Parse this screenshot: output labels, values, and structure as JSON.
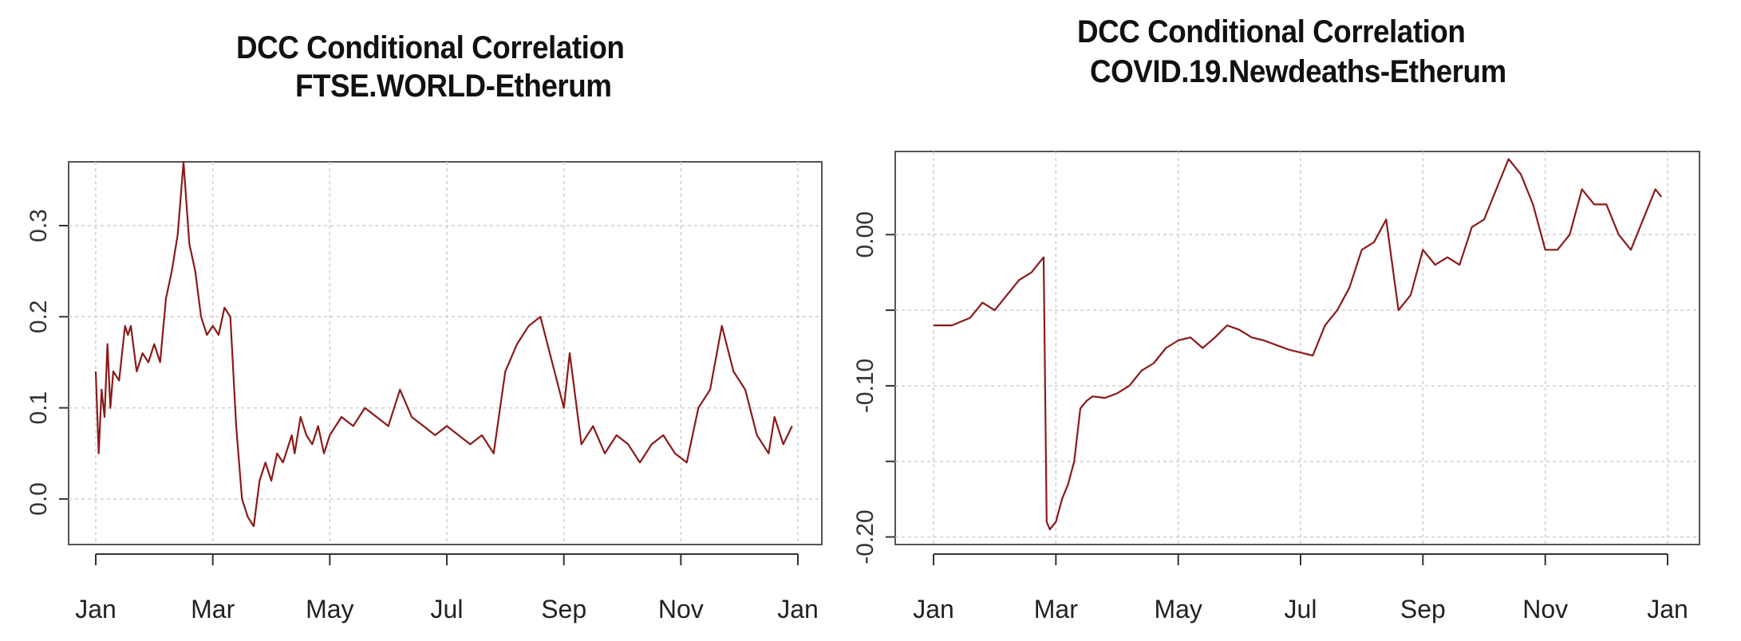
{
  "chart_data": [
    {
      "type": "line",
      "title": "DCC Conditional Correlation",
      "subtitle": "FTSE.WORLD-Etherum",
      "xlabel": "",
      "ylabel": "",
      "x_tick_labels": [
        "Jan",
        "Mar",
        "May",
        "Jul",
        "Sep",
        "Nov",
        "Jan"
      ],
      "y_ticks": [
        0.0,
        0.1,
        0.2,
        0.3
      ],
      "y_tick_labels": [
        "0.0",
        "0.1",
        "0.2",
        "0.3"
      ],
      "ylim": [
        -0.05,
        0.37
      ],
      "xlim_months": [
        0,
        12
      ],
      "grid": true,
      "line_color": "#8b1a1a",
      "series": [
        {
          "x": [
            0.0,
            0.05,
            0.1,
            0.15,
            0.2,
            0.25,
            0.3,
            0.4,
            0.5,
            0.55,
            0.6,
            0.7,
            0.8,
            0.9,
            1.0,
            1.1,
            1.2,
            1.3,
            1.4,
            1.5,
            1.6,
            1.7,
            1.8,
            1.9,
            2.0,
            2.1,
            2.2,
            2.3,
            2.4,
            2.5,
            2.6,
            2.7,
            2.8,
            2.9,
            3.0,
            3.1,
            3.2,
            3.3,
            3.35,
            3.4,
            3.5,
            3.6,
            3.7,
            3.8,
            3.9,
            4.0,
            4.2,
            4.4,
            4.6,
            4.8,
            5.0,
            5.2,
            5.4,
            5.6,
            5.8,
            6.0,
            6.2,
            6.4,
            6.6,
            6.8,
            7.0,
            7.2,
            7.4,
            7.6,
            7.8,
            8.0,
            8.1,
            8.3,
            8.5,
            8.7,
            8.9,
            9.1,
            9.3,
            9.5,
            9.7,
            9.9,
            10.1,
            10.3,
            10.5,
            10.7,
            10.9,
            11.1,
            11.3,
            11.5,
            11.6,
            11.75,
            11.9
          ],
          "y": [
            0.14,
            0.05,
            0.12,
            0.09,
            0.17,
            0.1,
            0.14,
            0.13,
            0.19,
            0.18,
            0.19,
            0.14,
            0.16,
            0.15,
            0.17,
            0.15,
            0.22,
            0.25,
            0.29,
            0.37,
            0.28,
            0.25,
            0.2,
            0.18,
            0.19,
            0.18,
            0.21,
            0.2,
            0.08,
            0.0,
            -0.02,
            -0.03,
            0.02,
            0.04,
            0.02,
            0.05,
            0.04,
            0.06,
            0.07,
            0.05,
            0.09,
            0.07,
            0.06,
            0.08,
            0.05,
            0.07,
            0.09,
            0.08,
            0.1,
            0.09,
            0.08,
            0.12,
            0.09,
            0.08,
            0.07,
            0.08,
            0.07,
            0.06,
            0.07,
            0.05,
            0.14,
            0.17,
            0.19,
            0.2,
            0.15,
            0.1,
            0.16,
            0.06,
            0.08,
            0.05,
            0.07,
            0.06,
            0.04,
            0.06,
            0.07,
            0.05,
            0.04,
            0.1,
            0.12,
            0.19,
            0.14,
            0.12,
            0.07,
            0.05,
            0.09,
            0.06,
            0.08
          ]
        }
      ]
    },
    {
      "type": "line",
      "title": "DCC Conditional Correlation",
      "subtitle": "COVID.19.Newdeaths-Etherum",
      "xlabel": "",
      "ylabel": "",
      "x_tick_labels": [
        "Jan",
        "Mar",
        "May",
        "Jul",
        "Sep",
        "Nov",
        "Jan"
      ],
      "y_ticks": [
        -0.2,
        -0.15,
        -0.1,
        -0.05,
        0.0
      ],
      "y_tick_labels": [
        "-0.20",
        "",
        "-0.10",
        "",
        "0.00"
      ],
      "ylim": [
        -0.205,
        0.055
      ],
      "xlim_months": [
        0,
        12
      ],
      "grid": true,
      "line_color": "#8b1a1a",
      "series": [
        {
          "x": [
            0.0,
            0.3,
            0.6,
            0.8,
            1.0,
            1.2,
            1.4,
            1.6,
            1.7,
            1.8,
            1.85,
            1.9,
            2.0,
            2.1,
            2.2,
            2.3,
            2.4,
            2.5,
            2.6,
            2.8,
            3.0,
            3.2,
            3.4,
            3.6,
            3.8,
            4.0,
            4.2,
            4.4,
            4.6,
            4.8,
            5.0,
            5.2,
            5.4,
            5.6,
            5.8,
            6.0,
            6.2,
            6.4,
            6.6,
            6.8,
            7.0,
            7.2,
            7.4,
            7.6,
            7.8,
            8.0,
            8.2,
            8.4,
            8.6,
            8.8,
            9.0,
            9.2,
            9.4,
            9.6,
            9.8,
            10.0,
            10.2,
            10.4,
            10.6,
            10.8,
            11.0,
            11.2,
            11.4,
            11.6,
            11.8,
            11.9
          ],
          "y": [
            -0.06,
            -0.06,
            -0.055,
            -0.045,
            -0.05,
            -0.04,
            -0.03,
            -0.025,
            -0.02,
            -0.015,
            -0.19,
            -0.195,
            -0.19,
            -0.175,
            -0.165,
            -0.15,
            -0.115,
            -0.11,
            -0.107,
            -0.108,
            -0.105,
            -0.1,
            -0.09,
            -0.085,
            -0.075,
            -0.07,
            -0.068,
            -0.075,
            -0.068,
            -0.06,
            -0.063,
            -0.068,
            -0.07,
            -0.073,
            -0.076,
            -0.078,
            -0.08,
            -0.06,
            -0.05,
            -0.035,
            -0.01,
            -0.005,
            0.01,
            -0.05,
            -0.04,
            -0.01,
            -0.02,
            -0.015,
            -0.02,
            0.005,
            0.01,
            0.03,
            0.05,
            0.04,
            0.02,
            -0.01,
            -0.01,
            0.0,
            0.03,
            0.02,
            0.02,
            0.0,
            -0.01,
            0.01,
            0.03,
            0.025
          ]
        }
      ]
    }
  ]
}
